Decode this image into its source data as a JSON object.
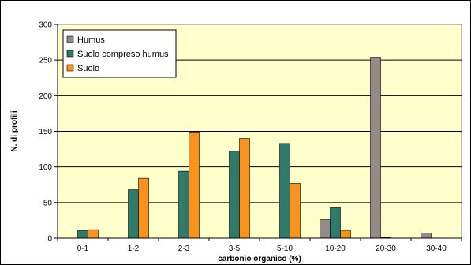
{
  "chart_data": {
    "type": "bar",
    "categories": [
      "0-1",
      "1-2",
      "2-3",
      "3-5",
      "5-10",
      "10-20",
      "20-30",
      "30-40"
    ],
    "series": [
      {
        "name": "Humus",
        "color": "#958b86",
        "values": [
          0,
          0,
          0,
          0,
          0,
          26,
          254,
          7
        ]
      },
      {
        "name": "Suolo compreso humus",
        "color": "#2f7a6a",
        "values": [
          11,
          68,
          94,
          122,
          133,
          43,
          1,
          0
        ]
      },
      {
        "name": "Suolo",
        "color": "#f7931e",
        "values": [
          12,
          84,
          149,
          140,
          77,
          11,
          0,
          0
        ]
      }
    ],
    "ylim": [
      0,
      300
    ],
    "yticks": [
      0,
      50,
      100,
      150,
      200,
      250,
      300
    ],
    "xlabel": "carbonio organico (%)",
    "ylabel": "N. di profili",
    "grid": true,
    "legend": "top-left",
    "plot_background": "#ffffcc"
  }
}
